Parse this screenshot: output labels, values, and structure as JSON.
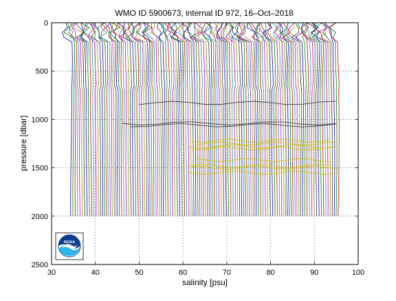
{
  "chart_data": {
    "type": "line",
    "title": "WMO ID 5900673, internal ID 972, 16–Oct–2018",
    "xlabel": "salinity [psu]",
    "ylabel": "pressure [dbar]",
    "xlim": [
      30,
      100
    ],
    "ylim": [
      2500,
      0
    ],
    "x_ticks": [
      "30",
      "40",
      "50",
      "60",
      "70",
      "80",
      "90",
      "100"
    ],
    "y_ticks": [
      "0",
      "500",
      "1000",
      "1500",
      "2000",
      "2500"
    ],
    "y_reversed": true,
    "grid": "dotted",
    "profile_offset_start": 34.5,
    "profile_offset_end": 95.5,
    "profile_count": 122,
    "pressure_max": 2000,
    "series_colors": [
      "#0000cc",
      "#008000",
      "#cc0000",
      "#00a0a0",
      "#c000c0",
      "#909000",
      "#333333"
    ],
    "anomalies": [
      {
        "name": "yellow-anomaly-lines",
        "color": "#d4c000",
        "pressures": [
          1280,
          1300,
          1250,
          1480,
          1500,
          1420,
          1550,
          1220
        ]
      },
      {
        "name": "dark-anomaly-lines",
        "color": "#404040",
        "pressures": [
          1040,
          1060,
          830
        ]
      }
    ]
  },
  "logo": {
    "name": "noaa-logo",
    "text": "NOAA"
  }
}
